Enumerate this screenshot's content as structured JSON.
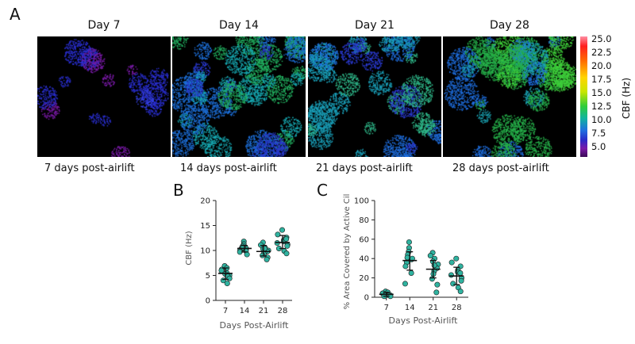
{
  "panel_labels": {
    "a": "A",
    "b": "B",
    "c": "C"
  },
  "micrographs": [
    {
      "day_title": "Day 7",
      "caption": "7 days post-airlift",
      "colors": [
        "#2a2fd0",
        "#3440e0",
        "#7a1aa8"
      ],
      "density": 0.1
    },
    {
      "day_title": "Day 14",
      "caption": "14 days post-airlift",
      "colors": [
        "#1d6fd8",
        "#17a7b0",
        "#2a3ad0",
        "#22b060"
      ],
      "density": 0.5
    },
    {
      "day_title": "Day 21",
      "caption": "21 days post-airlift",
      "colors": [
        "#1a9fb8",
        "#1f6fe0",
        "#2fb88a",
        "#2a3ad0"
      ],
      "density": 0.38
    },
    {
      "day_title": "Day 28",
      "caption": "28 days post-airlift",
      "colors": [
        "#26b04a",
        "#3fcf3a",
        "#1aa0b0",
        "#1f6fe0"
      ],
      "density": 0.4
    }
  ],
  "colorbar": {
    "label": "CBF (Hz)",
    "ticks": [
      "25.0",
      "22.5",
      "20.0",
      "17.5",
      "15.0",
      "12.5",
      "10.0",
      "7.5",
      "5.0"
    ]
  },
  "chart_data": [
    {
      "type": "scatter",
      "title": "",
      "xlabel": "Days Post-Airlift",
      "ylabel": "CBF (Hz)",
      "categories": [
        "7",
        "14",
        "21",
        "28"
      ],
      "ylim": [
        0,
        20
      ],
      "yticks": [
        0,
        5,
        10,
        15,
        20
      ],
      "series": [
        {
          "category": "7",
          "mean": 5.4,
          "err": [
            4.2,
            6.5
          ],
          "values": [
            6.9,
            6.5,
            6.2,
            5.9,
            5.5,
            5.3,
            5.0,
            4.8,
            4.4,
            4.0,
            3.4,
            6.0
          ]
        },
        {
          "category": "14",
          "mean": 10.4,
          "err": [
            9.7,
            11.0
          ],
          "values": [
            11.8,
            11.3,
            11.0,
            10.8,
            10.6,
            10.4,
            10.3,
            10.1,
            9.9,
            9.7,
            9.2,
            10.6
          ]
        },
        {
          "category": "21",
          "mean": 9.8,
          "err": [
            8.9,
            11.0
          ],
          "values": [
            11.6,
            11.1,
            10.6,
            10.3,
            10.0,
            9.8,
            9.6,
            9.3,
            9.0,
            8.6,
            8.2,
            10.4
          ]
        },
        {
          "category": "28",
          "mean": 11.6,
          "err": [
            10.4,
            13.0
          ],
          "values": [
            14.1,
            13.2,
            12.6,
            12.1,
            11.8,
            11.5,
            11.2,
            10.9,
            10.4,
            9.9,
            9.4,
            12.3
          ]
        }
      ],
      "marker_color": "#2fb3a0"
    },
    {
      "type": "scatter",
      "title": "",
      "xlabel": "Days Post-Airlift",
      "ylabel": "% Area Covered by Active Cilia",
      "categories": [
        "7",
        "14",
        "21",
        "28"
      ],
      "ylim": [
        0,
        100
      ],
      "yticks": [
        0,
        20,
        40,
        60,
        80,
        100
      ],
      "series": [
        {
          "category": "7",
          "mean": 3,
          "err": [
            1,
            5
          ],
          "values": [
            6,
            5,
            4,
            4,
            3,
            3,
            2,
            2,
            1,
            1
          ]
        },
        {
          "category": "14",
          "mean": 38,
          "err": [
            28,
            47
          ],
          "values": [
            57,
            51,
            47,
            44,
            41,
            39,
            36,
            32,
            25,
            14,
            40
          ]
        },
        {
          "category": "21",
          "mean": 29,
          "err": [
            20,
            38
          ],
          "values": [
            46,
            43,
            40,
            37,
            34,
            30,
            27,
            24,
            19,
            13,
            5,
            33
          ]
        },
        {
          "category": "28",
          "mean": 22,
          "err": [
            13,
            31
          ],
          "values": [
            40,
            36,
            32,
            28,
            26,
            23,
            20,
            17,
            14,
            10,
            6,
            25
          ]
        }
      ],
      "marker_color": "#2fb3a0"
    }
  ]
}
